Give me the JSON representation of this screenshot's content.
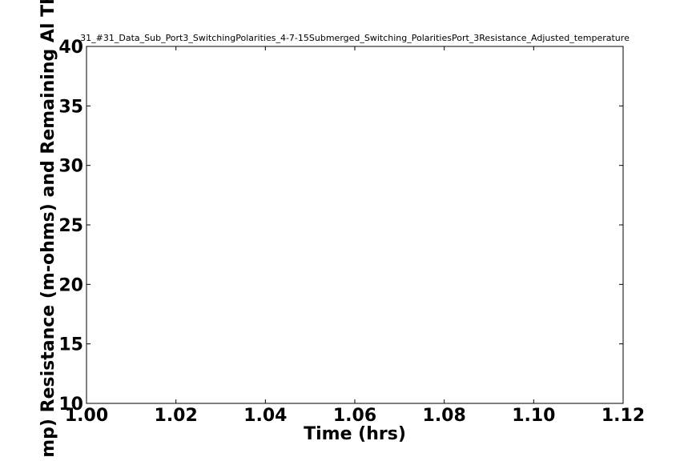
{
  "chart_data": {
    "type": "line",
    "title": "31_#31_Data_Sub_Port3_SwitchingPolarities_4-7-15Submerged_Switching_PolaritiesPort_3Resistance_Adjusted_temperature",
    "xlabel": "Time (hrs)",
    "ylabel": "mp) Resistance (m-ohms) and Remaining Al Th",
    "xlim": [
      1.0,
      1.12
    ],
    "ylim": [
      10,
      40
    ],
    "x_ticks": [
      "1.00",
      "1.02",
      "1.04",
      "1.06",
      "1.08",
      "1.10",
      "1.12"
    ],
    "y_ticks": [
      "10",
      "15",
      "20",
      "25",
      "30",
      "35",
      "40"
    ],
    "series": [],
    "grid": false,
    "legend": "none"
  }
}
